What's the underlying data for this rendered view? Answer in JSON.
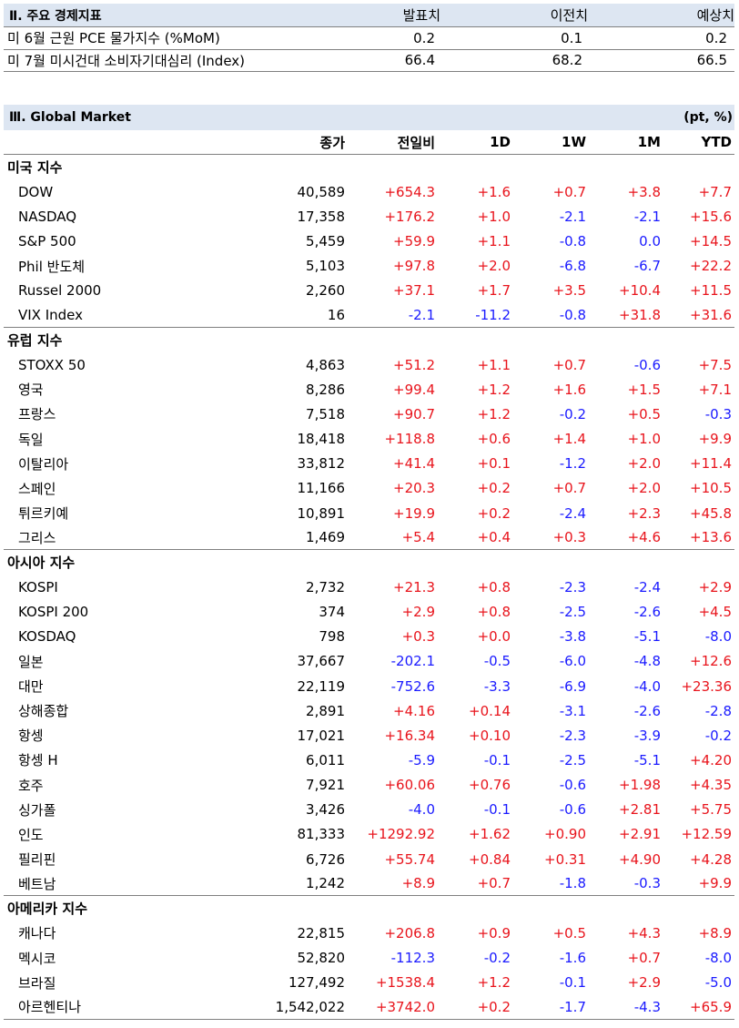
{
  "econ": {
    "title": "Ⅱ. 주요 경제지표",
    "columns": [
      "발표치",
      "이전치",
      "예상치"
    ],
    "rows": [
      {
        "label": "미 6월 근원 PCE 물가지수 (%MoM)",
        "values": [
          "0.2",
          "0.1",
          "0.2"
        ]
      },
      {
        "label": "미 7월 미시건대 소비자기대심리 (Index)",
        "values": [
          "66.4",
          "68.2",
          "66.5"
        ]
      }
    ]
  },
  "market": {
    "title": "Ⅲ. Global Market",
    "unit": "(pt, %)",
    "columns": [
      "종가",
      "전일비",
      "1D",
      "1W",
      "1M",
      "YTD"
    ],
    "groups": [
      {
        "name": "미국 지수",
        "rows": [
          {
            "label": "DOW",
            "values": [
              "40,589",
              "+654.3",
              "+1.6",
              "+0.7",
              "+3.8",
              "+7.7"
            ]
          },
          {
            "label": "NASDAQ",
            "values": [
              "17,358",
              "+176.2",
              "+1.0",
              "-2.1",
              "-2.1",
              "+15.6"
            ]
          },
          {
            "label": "S&P 500",
            "values": [
              "5,459",
              "+59.9",
              "+1.1",
              "-0.8",
              "0.0",
              "+14.5"
            ]
          },
          {
            "label": "Phil 반도체",
            "values": [
              "5,103",
              "+97.8",
              "+2.0",
              "-6.8",
              "-6.7",
              "+22.2"
            ]
          },
          {
            "label": "Russel 2000",
            "values": [
              "2,260",
              "+37.1",
              "+1.7",
              "+3.5",
              "+10.4",
              "+11.5"
            ]
          },
          {
            "label": "VIX Index",
            "values": [
              "16",
              "-2.1",
              "-11.2",
              "-0.8",
              "+31.8",
              "+31.6"
            ]
          }
        ]
      },
      {
        "name": "유럽 지수",
        "rows": [
          {
            "label": "STOXX 50",
            "values": [
              "4,863",
              "+51.2",
              "+1.1",
              "+0.7",
              "-0.6",
              "+7.5"
            ]
          },
          {
            "label": "영국",
            "values": [
              "8,286",
              "+99.4",
              "+1.2",
              "+1.6",
              "+1.5",
              "+7.1"
            ]
          },
          {
            "label": "프랑스",
            "values": [
              "7,518",
              "+90.7",
              "+1.2",
              "-0.2",
              "+0.5",
              "-0.3"
            ]
          },
          {
            "label": "독일",
            "values": [
              "18,418",
              "+118.8",
              "+0.6",
              "+1.4",
              "+1.0",
              "+9.9"
            ]
          },
          {
            "label": "이탈리아",
            "values": [
              "33,812",
              "+41.4",
              "+0.1",
              "-1.2",
              "+2.0",
              "+11.4"
            ]
          },
          {
            "label": "스페인",
            "values": [
              "11,166",
              "+20.3",
              "+0.2",
              "+0.7",
              "+2.0",
              "+10.5"
            ]
          },
          {
            "label": "튀르키예",
            "values": [
              "10,891",
              "+19.9",
              "+0.2",
              "-2.4",
              "+2.3",
              "+45.8"
            ]
          },
          {
            "label": "그리스",
            "values": [
              "1,469",
              "+5.4",
              "+0.4",
              "+0.3",
              "+4.6",
              "+13.6"
            ]
          }
        ]
      },
      {
        "name": "아시아 지수",
        "rows": [
          {
            "label": "KOSPI",
            "values": [
              "2,732",
              "+21.3",
              "+0.8",
              "-2.3",
              "-2.4",
              "+2.9"
            ]
          },
          {
            "label": "KOSPI 200",
            "values": [
              "374",
              "+2.9",
              "+0.8",
              "-2.5",
              "-2.6",
              "+4.5"
            ]
          },
          {
            "label": "KOSDAQ",
            "values": [
              "798",
              "+0.3",
              "+0.0",
              "-3.8",
              "-5.1",
              "-8.0"
            ]
          },
          {
            "label": "일본",
            "values": [
              "37,667",
              "-202.1",
              "-0.5",
              "-6.0",
              "-4.8",
              "+12.6"
            ]
          },
          {
            "label": "대만",
            "values": [
              "22,119",
              "-752.6",
              "-3.3",
              "-6.9",
              "-4.0",
              "+23.36"
            ]
          },
          {
            "label": "상해종합",
            "values": [
              "2,891",
              "+4.16",
              "+0.14",
              "-3.1",
              "-2.6",
              "-2.8"
            ]
          },
          {
            "label": "항셍",
            "values": [
              "17,021",
              "+16.34",
              "+0.10",
              "-2.3",
              "-3.9",
              "-0.2"
            ]
          },
          {
            "label": "항셍 H",
            "values": [
              "6,011",
              "-5.9",
              "-0.1",
              "-2.5",
              "-5.1",
              "+4.20"
            ]
          },
          {
            "label": "호주",
            "values": [
              "7,921",
              "+60.06",
              "+0.76",
              "-0.6",
              "+1.98",
              "+4.35"
            ]
          },
          {
            "label": "싱가폴",
            "values": [
              "3,426",
              "-4.0",
              "-0.1",
              "-0.6",
              "+2.81",
              "+5.75"
            ]
          },
          {
            "label": "인도",
            "values": [
              "81,333",
              "+1292.92",
              "+1.62",
              "+0.90",
              "+2.91",
              "+12.59"
            ]
          },
          {
            "label": "필리핀",
            "values": [
              "6,726",
              "+55.74",
              "+0.84",
              "+0.31",
              "+4.90",
              "+4.28"
            ]
          },
          {
            "label": "베트남",
            "values": [
              "1,242",
              "+8.9",
              "+0.7",
              "-1.8",
              "-0.3",
              "+9.9"
            ]
          }
        ]
      },
      {
        "name": "아메리카 지수",
        "rows": [
          {
            "label": "캐나다",
            "values": [
              "22,815",
              "+206.8",
              "+0.9",
              "+0.5",
              "+4.3",
              "+8.9"
            ]
          },
          {
            "label": "멕시코",
            "values": [
              "52,820",
              "-112.3",
              "-0.2",
              "-1.6",
              "+0.7",
              "-8.0"
            ]
          },
          {
            "label": "브라질",
            "values": [
              "127,492",
              "+1538.4",
              "+1.2",
              "-0.1",
              "+2.9",
              "-5.0"
            ]
          },
          {
            "label": "아르헨티나",
            "values": [
              "1,542,022",
              "+3742.0",
              "+0.2",
              "-1.7",
              "-4.3",
              "+65.9"
            ]
          }
        ]
      }
    ]
  }
}
